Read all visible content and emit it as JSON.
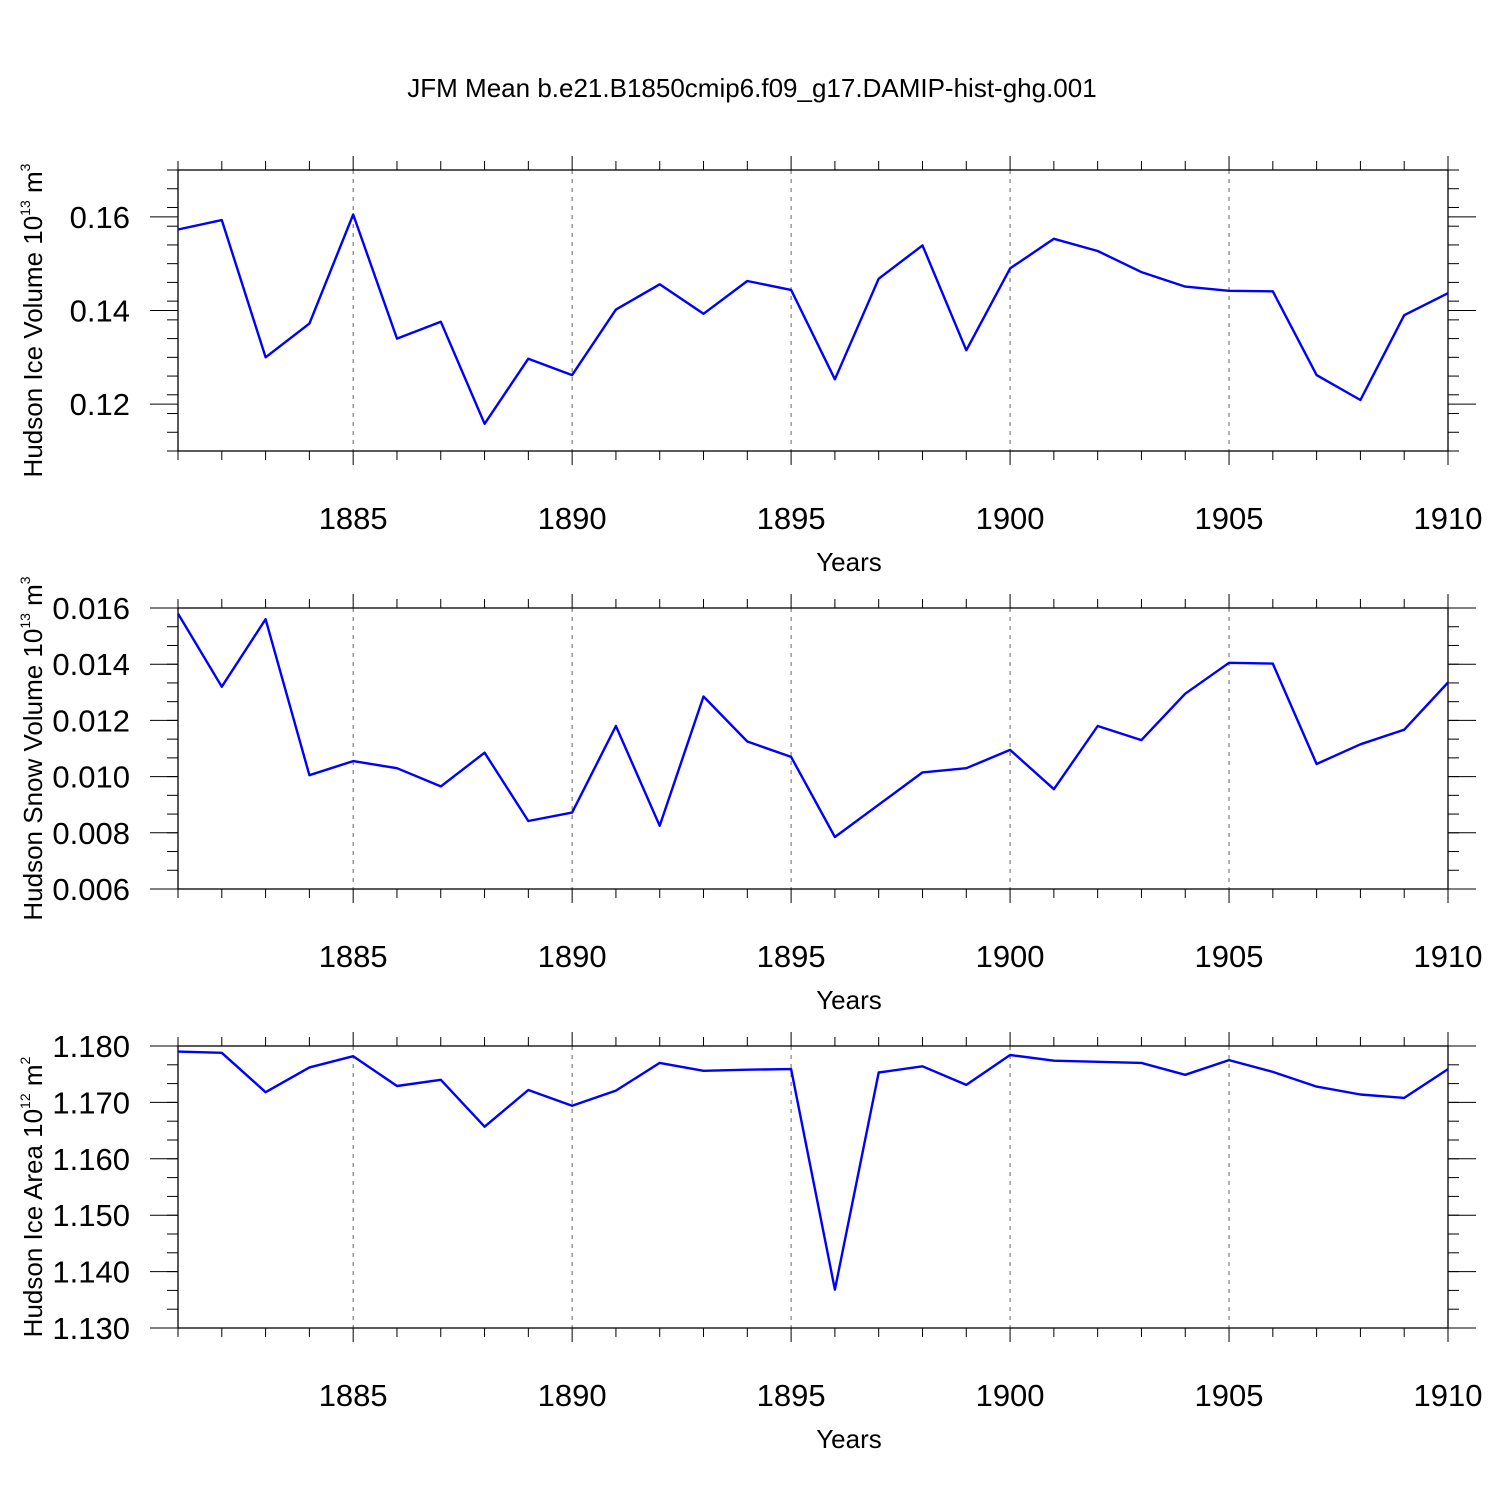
{
  "title": "JFM Mean b.e21.B1850cmip6.f09_g17.DAMIP-hist-ghg.001",
  "chart_data": [
    {
      "type": "line",
      "ylabel_base": "Hudson Ice Volume 10",
      "ylabel_exp": "13",
      "ylabel_unit": "m",
      "ylabel_unit_exp": "3",
      "xlabel": "Years",
      "xlim": [
        1881,
        1910
      ],
      "ylim": [
        0.11,
        0.17
      ],
      "xticks": [
        "1885",
        "1890",
        "1895",
        "1900",
        "1905",
        "1910"
      ],
      "yticks": [
        "0.12",
        "0.14",
        "0.16"
      ],
      "color": "#0000ff",
      "x": [
        1881,
        1882,
        1883,
        1884,
        1885,
        1886,
        1887,
        1888,
        1889,
        1890,
        1891,
        1892,
        1893,
        1894,
        1895,
        1896,
        1897,
        1898,
        1899,
        1900,
        1901,
        1902,
        1903,
        1904,
        1905,
        1906,
        1907,
        1908,
        1909,
        1910
      ],
      "values": [
        0.1573,
        0.1593,
        0.13,
        0.1372,
        0.1605,
        0.134,
        0.1376,
        0.1158,
        0.1297,
        0.1262,
        0.1402,
        0.1456,
        0.1393,
        0.1463,
        0.1444,
        0.1253,
        0.1468,
        0.1539,
        0.1315,
        0.149,
        0.1553,
        0.1527,
        0.1482,
        0.1451,
        0.1442,
        0.1441,
        0.1262,
        0.1209,
        0.139,
        0.1437
      ]
    },
    {
      "type": "line",
      "ylabel_base": "Hudson Snow Volume 10",
      "ylabel_exp": "13",
      "ylabel_unit": "m",
      "ylabel_unit_exp": "3",
      "xlabel": "Years",
      "xlim": [
        1881,
        1910
      ],
      "ylim": [
        0.006,
        0.016
      ],
      "xticks": [
        "1885",
        "1890",
        "1895",
        "1900",
        "1905",
        "1910"
      ],
      "yticks": [
        "0.006",
        "0.008",
        "0.010",
        "0.012",
        "0.014",
        "0.016"
      ],
      "color": "#0000ff",
      "x": [
        1881,
        1882,
        1883,
        1884,
        1885,
        1886,
        1887,
        1888,
        1889,
        1890,
        1891,
        1892,
        1893,
        1894,
        1895,
        1896,
        1897,
        1898,
        1899,
        1900,
        1901,
        1902,
        1903,
        1904,
        1905,
        1906,
        1907,
        1908,
        1909,
        1910
      ],
      "values": [
        0.0158,
        0.0132,
        0.0156,
        0.01005,
        0.01055,
        0.0103,
        0.00965,
        0.01085,
        0.00842,
        0.00872,
        0.0118,
        0.00825,
        0.01285,
        0.01125,
        0.0107,
        0.00785,
        0.009,
        0.01015,
        0.0103,
        0.01095,
        0.00955,
        0.0118,
        0.0113,
        0.01295,
        0.01405,
        0.01402,
        0.01045,
        0.01115,
        0.01167,
        0.01335
      ]
    },
    {
      "type": "line",
      "ylabel_base": "Hudson Ice Area 10",
      "ylabel_exp": "12",
      "ylabel_unit": "m",
      "ylabel_unit_exp": "2",
      "xlabel": "Years",
      "xlim": [
        1881,
        1910
      ],
      "ylim": [
        1.13,
        1.18
      ],
      "xticks": [
        "1885",
        "1890",
        "1895",
        "1900",
        "1905",
        "1910"
      ],
      "yticks": [
        "1.130",
        "1.140",
        "1.150",
        "1.160",
        "1.170",
        "1.180"
      ],
      "color": "#0000ff",
      "x": [
        1881,
        1882,
        1883,
        1884,
        1885,
        1886,
        1887,
        1888,
        1889,
        1890,
        1891,
        1892,
        1893,
        1894,
        1895,
        1896,
        1897,
        1898,
        1899,
        1900,
        1901,
        1902,
        1903,
        1904,
        1905,
        1906,
        1907,
        1908,
        1909,
        1910
      ],
      "values": [
        1.179,
        1.1788,
        1.1718,
        1.1762,
        1.1782,
        1.1729,
        1.174,
        1.1657,
        1.1722,
        1.1694,
        1.1721,
        1.177,
        1.1756,
        1.1758,
        1.1759,
        1.1368,
        1.1753,
        1.1764,
        1.1731,
        1.1784,
        1.1774,
        1.1772,
        1.177,
        1.1749,
        1.1775,
        1.1754,
        1.1728,
        1.1714,
        1.1708,
        1.1759
      ]
    }
  ]
}
